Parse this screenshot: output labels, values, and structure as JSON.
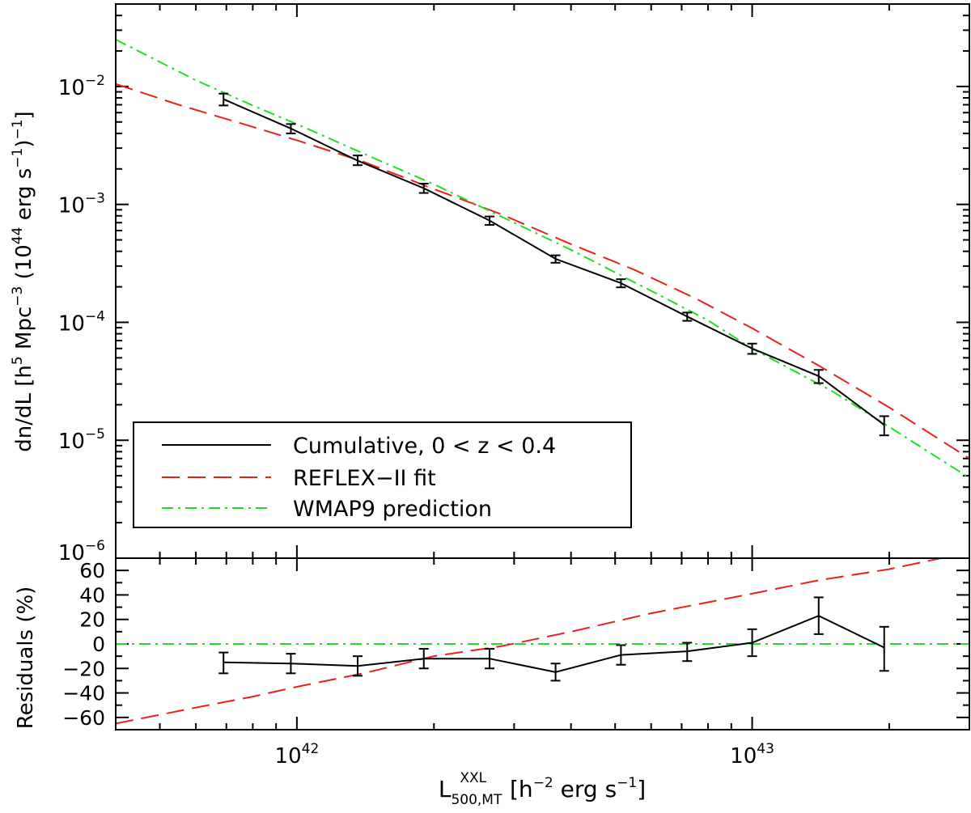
{
  "chart_data": [
    {
      "type": "line",
      "panel": "top",
      "xscale": "log",
      "yscale": "log",
      "xlim": [
        4e+41,
        3e+43
      ],
      "ylim": [
        1e-06,
        0.05
      ],
      "ylabel": "dn/dL [h^5 Mpc^-3 (10^44 erg s^-1)^-1]",
      "ylabel_parts": {
        "a": "dn/dL [h",
        "b": "5",
        "c": " Mpc",
        "d": "−3",
        "e": " (10",
        "f": "44",
        "g": " erg s",
        "h": "−1",
        "i": ")",
        "j": "−1",
        "k": "]"
      },
      "yticks": [
        {
          "base": "10",
          "exp": "−2",
          "value": 0.01
        },
        {
          "base": "10",
          "exp": "−3",
          "value": 0.001
        },
        {
          "base": "10",
          "exp": "−4",
          "value": 0.0001
        },
        {
          "base": "10",
          "exp": "−5",
          "value": 1e-05
        },
        {
          "base": "10",
          "exp": "−6",
          "value": 1e-06
        }
      ],
      "legend": {
        "location": "lower-left",
        "entries": [
          {
            "label": "Cumulative, 0 < z < 0.4",
            "series": "cumulative"
          },
          {
            "label": "REFLEX−II fit",
            "series": "reflex"
          },
          {
            "label": "WMAP9 prediction",
            "series": "wmap9"
          }
        ]
      },
      "series": [
        {
          "name": "cumulative",
          "color": "#000000",
          "style": "solid",
          "x": [
            6.9e+41,
            9.7e+41,
            1.36e+42,
            1.9e+42,
            2.65e+42,
            3.7e+42,
            5.15e+42,
            7.2e+42,
            1e+43,
            1.4e+43,
            1.95e+43
          ],
          "y": [
            0.0078,
            0.0044,
            0.00235,
            0.00137,
            0.00073,
            0.000345,
            0.000215,
            0.000112,
            6e-05,
            3.5e-05,
            1.35e-05
          ],
          "err_lo": [
            0.0069,
            0.004,
            0.00215,
            0.00125,
            0.00067,
            0.00032,
            0.000198,
            0.000103,
            5.4e-05,
            3.05e-05,
            1.1e-05
          ],
          "err_hi": [
            0.0087,
            0.0048,
            0.0026,
            0.0015,
            0.00079,
            0.00037,
            0.000232,
            0.000121,
            6.6e-05,
            3.95e-05,
            1.6e-05
          ]
        },
        {
          "name": "reflex",
          "color": "#e8211c",
          "style": "dashed",
          "x": [
            4e+41,
            5.5e+41,
            7.5e+41,
            1e+42,
            1.4e+42,
            2e+42,
            2.8e+42,
            4e+42,
            5.5e+42,
            7.5e+42,
            1e+43,
            1.4e+43,
            2e+43,
            3e+43
          ],
          "y": [
            0.0105,
            0.007,
            0.0049,
            0.0035,
            0.0023,
            0.00135,
            0.00083,
            0.00046,
            0.00028,
            0.00016,
            8.9e-05,
            4.3e-05,
            1.9e-05,
            7e-06
          ]
        },
        {
          "name": "wmap9",
          "color": "#22dd22",
          "style": "dashdot",
          "x": [
            4e+41,
            6e+41,
            8e+41,
            1e+42,
            1.5e+42,
            2e+42,
            3e+42,
            4e+42,
            6e+42,
            8e+42,
            1e+43,
            1.5e+43,
            2e+43,
            3e+43
          ],
          "y": [
            0.025,
            0.0113,
            0.0069,
            0.0048,
            0.0024,
            0.00148,
            0.0007,
            0.000412,
            0.000185,
            0.000104,
            6e-05,
            2.6e-05,
            1.3e-05,
            4.8e-06
          ]
        }
      ]
    },
    {
      "type": "line",
      "panel": "bottom",
      "xscale": "log",
      "xlim": [
        4e+41,
        3e+43
      ],
      "ylim": [
        -70,
        70
      ],
      "ylabel": "Residuals (%)",
      "yticks": [
        {
          "label": "60",
          "value": 60
        },
        {
          "label": "40",
          "value": 40
        },
        {
          "label": "20",
          "value": 20
        },
        {
          "label": "0",
          "value": 0
        },
        {
          "label": "−20",
          "value": -20
        },
        {
          "label": "−40",
          "value": -40
        },
        {
          "label": "−60",
          "value": -60
        }
      ],
      "xticks": [
        {
          "base": "10",
          "exp": "42",
          "value": 1e+42
        },
        {
          "base": "10",
          "exp": "43",
          "value": 1e+43
        }
      ],
      "xlabel": "L_500,MT^XXL [h^-2 erg s^-1]",
      "xlabel_parts": {
        "a": "L",
        "sub": "500,MT",
        "sup": "XXL",
        "b": " [h",
        "c": "−2",
        "d": " erg s",
        "e": "−1",
        "f": "]"
      },
      "series": [
        {
          "name": "residuals",
          "color": "#000000",
          "style": "solid",
          "x": [
            6.9e+41,
            9.7e+41,
            1.36e+42,
            1.9e+42,
            2.65e+42,
            3.7e+42,
            5.15e+42,
            7.2e+42,
            1e+43,
            1.4e+43,
            1.95e+43
          ],
          "y": [
            -15,
            -16,
            -18,
            -12,
            -12,
            -23,
            -9,
            -6,
            1,
            23,
            -3
          ],
          "err_lo": [
            -24,
            -24,
            -26,
            -20,
            -20,
            -30,
            -17,
            -14,
            -10,
            8,
            -22
          ],
          "err_hi": [
            -7,
            -8,
            -10,
            -4,
            -4,
            -16,
            -1,
            1,
            12,
            38,
            14
          ]
        },
        {
          "name": "reflex-residual",
          "color": "#e8211c",
          "style": "dashed",
          "x": [
            4e+41,
            6e+41,
            8e+41,
            1e+42,
            1.4e+42,
            2e+42,
            2.8e+42,
            4e+42,
            6e+42,
            1e+43,
            1.4e+43,
            2e+43,
            2.6e+43
          ],
          "y": [
            -65,
            -52,
            -43,
            -35,
            -24,
            -10,
            -2,
            10,
            25,
            41,
            52,
            61,
            70
          ]
        },
        {
          "name": "wmap9-residual",
          "color": "#22dd22",
          "style": "dashdot",
          "x": [
            4e+41,
            3e+43
          ],
          "y": [
            0,
            0
          ]
        }
      ]
    }
  ]
}
